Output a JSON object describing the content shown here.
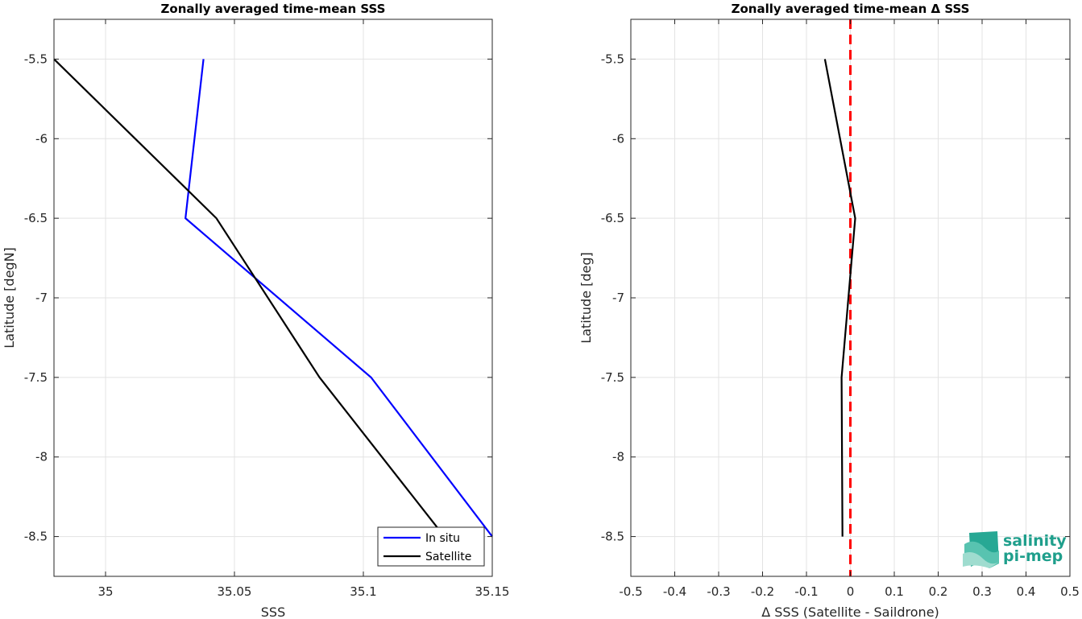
{
  "chart_data": [
    {
      "type": "line",
      "title": "Zonally averaged time-mean SSS",
      "xlabel": "SSS",
      "ylabel": "Latitude [degN]",
      "xlim": [
        34.98,
        35.15
      ],
      "ylim": [
        -8.75,
        -5.25
      ],
      "xticks": [
        35,
        35.05,
        35.1,
        35.15
      ],
      "xtick_labels": [
        "35",
        "35.05",
        "35.1",
        "35.15"
      ],
      "yticks": [
        -5.5,
        -6,
        -6.5,
        -7,
        -7.5,
        -8,
        -8.5
      ],
      "ytick_labels": [
        "-5.5",
        "-6",
        "-6.5",
        "-7",
        "-7.5",
        "-8",
        "-8.5"
      ],
      "grid": true,
      "legend_position": "bottom-right",
      "series": [
        {
          "name": "In situ",
          "color": "#0000ff",
          "x": [
            35.038,
            35.031,
            35.103,
            35.15
          ],
          "y": [
            -5.5,
            -6.5,
            -7.5,
            -8.5
          ]
        },
        {
          "name": "Satellite",
          "color": "#000000",
          "x": [
            34.98,
            35.043,
            35.083,
            35.129
          ],
          "y": [
            -5.5,
            -6.5,
            -7.5,
            -8.45
          ]
        }
      ]
    },
    {
      "type": "line",
      "title": "Zonally averaged time-mean Δ SSS",
      "xlabel": "Δ SSS (Satellite - Saildrone)",
      "ylabel": "Latitude [deg]",
      "xlim": [
        -0.5,
        0.5
      ],
      "ylim": [
        -8.75,
        -5.25
      ],
      "xticks": [
        -0.5,
        -0.4,
        -0.3,
        -0.2,
        -0.1,
        0,
        0.1,
        0.2,
        0.3,
        0.4,
        0.5
      ],
      "xtick_labels": [
        "-0.5",
        "-0.4",
        "-0.3",
        "-0.2",
        "-0.1",
        "0",
        "0.1",
        "0.2",
        "0.3",
        "0.4",
        "0.5"
      ],
      "yticks": [
        -5.5,
        -6,
        -6.5,
        -7,
        -7.5,
        -8,
        -8.5
      ],
      "ytick_labels": [
        "-5.5",
        "-6",
        "-6.5",
        "-7",
        "-7.5",
        "-8",
        "-8.5"
      ],
      "grid": true,
      "series": [
        {
          "color": "#000000",
          "x": [
            -0.058,
            0.011,
            -0.02,
            -0.018
          ],
          "y": [
            -5.5,
            -6.5,
            -7.5,
            -8.5
          ]
        }
      ],
      "reference_line": {
        "x": 0,
        "color": "#ff0000",
        "style": "dashed"
      }
    }
  ],
  "logo": {
    "line1": "salinity",
    "line2": "pi-mep",
    "color": "#1f9f8c"
  }
}
